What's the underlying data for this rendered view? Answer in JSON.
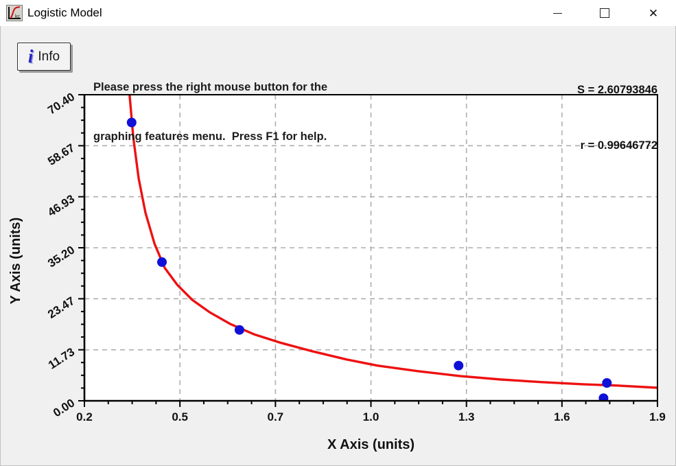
{
  "window": {
    "title": "Logistic Model",
    "app_icon": "curve-fit-app-icon",
    "controls": {
      "close_glyph": "✕"
    }
  },
  "toolbar": {
    "info_button": {
      "icon_glyph": "i",
      "label": "Info"
    },
    "instructions_line1": "Please press the right mouse button for the",
    "instructions_line2": "graphing features menu.  Press F1 for help.",
    "stats_line1": "S = 2.60793846",
    "stats_line2": "r = 0.99646772"
  },
  "chart_data": {
    "type": "scatter",
    "title": "",
    "xlabel": "X Axis (units)",
    "ylabel": "Y Axis (units)",
    "xlim": [
      0.2,
      1.9
    ],
    "ylim": [
      0.0,
      70.4
    ],
    "x_tick_labels": [
      "0.2",
      "0.5",
      "0.7",
      "1.0",
      "1.3",
      "1.6",
      "1.9"
    ],
    "y_tick_labels": [
      "70.40",
      "58.67",
      "46.93",
      "35.20",
      "23.47",
      "11.73",
      "0.00"
    ],
    "x_minor_per_major": 3,
    "y_minor_per_major": 3,
    "grid": "dashed",
    "legend": "none",
    "fit_stats": {
      "S": 2.60793846,
      "r": 0.99646772
    },
    "series": [
      {
        "name": "observed-data-points",
        "type": "scatter",
        "color": "#1010d8",
        "points": [
          [
            0.34,
            64.0
          ],
          [
            0.43,
            31.9
          ],
          [
            0.66,
            16.3
          ],
          [
            1.31,
            8.1
          ],
          [
            1.75,
            4.1
          ],
          [
            1.74,
            0.6
          ]
        ]
      },
      {
        "name": "logistic-fit-curve",
        "type": "line",
        "color": "#ee1111",
        "points": [
          [
            0.33,
            73.0
          ],
          [
            0.334,
            70.4
          ],
          [
            0.345,
            60.6
          ],
          [
            0.361,
            51.1
          ],
          [
            0.381,
            43.3
          ],
          [
            0.408,
            36.1
          ],
          [
            0.438,
            30.6
          ],
          [
            0.475,
            26.7
          ],
          [
            0.52,
            23.2
          ],
          [
            0.571,
            20.4
          ],
          [
            0.632,
            17.7
          ],
          [
            0.703,
            15.3
          ],
          [
            0.784,
            13.3
          ],
          [
            0.876,
            11.4
          ],
          [
            0.978,
            9.5
          ],
          [
            1.069,
            8.1
          ],
          [
            1.191,
            6.8
          ],
          [
            1.314,
            5.7
          ],
          [
            1.436,
            4.9
          ],
          [
            1.558,
            4.3
          ],
          [
            1.68,
            3.8
          ],
          [
            1.782,
            3.5
          ],
          [
            1.9,
            3.0
          ]
        ]
      }
    ],
    "colors": {
      "grid": "#aeaeae",
      "axis": "#000000",
      "plot_background": "#ffffff",
      "window_background": "#f0f0f0"
    }
  }
}
